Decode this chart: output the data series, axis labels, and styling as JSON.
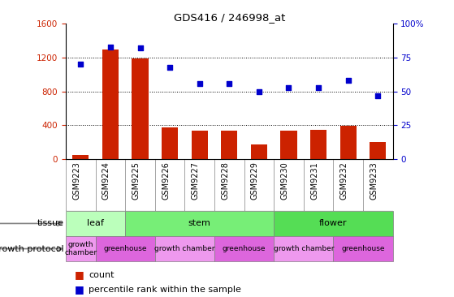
{
  "title": "GDS416 / 246998_at",
  "samples": [
    "GSM9223",
    "GSM9224",
    "GSM9225",
    "GSM9226",
    "GSM9227",
    "GSM9228",
    "GSM9229",
    "GSM9230",
    "GSM9231",
    "GSM9232",
    "GSM9233"
  ],
  "counts": [
    50,
    1300,
    1190,
    370,
    335,
    330,
    175,
    335,
    345,
    395,
    200
  ],
  "percentiles": [
    70,
    83,
    82,
    68,
    56,
    56,
    50,
    53,
    53,
    58,
    47
  ],
  "bar_color": "#cc2200",
  "dot_color": "#0000cc",
  "ylim_left": [
    0,
    1600
  ],
  "ylim_right": [
    0,
    100
  ],
  "yticks_left": [
    0,
    400,
    800,
    1200,
    1600
  ],
  "ytick_labels_left": [
    "0",
    "400",
    "800",
    "1200",
    "1600"
  ],
  "yticks_right": [
    0,
    25,
    50,
    75,
    100
  ],
  "ytick_labels_right": [
    "0",
    "25",
    "50",
    "75",
    "100%"
  ],
  "tissue_groups": [
    {
      "label": "leaf",
      "start": 0,
      "end": 2,
      "color": "#bbffbb"
    },
    {
      "label": "stem",
      "start": 2,
      "end": 7,
      "color": "#77ee77"
    },
    {
      "label": "flower",
      "start": 7,
      "end": 11,
      "color": "#55dd55"
    }
  ],
  "protocol_groups": [
    {
      "label": "growth\nchamber",
      "start": 0,
      "end": 1,
      "color": "#ee99ee"
    },
    {
      "label": "greenhouse",
      "start": 1,
      "end": 3,
      "color": "#dd66dd"
    },
    {
      "label": "growth chamber",
      "start": 3,
      "end": 5,
      "color": "#ee99ee"
    },
    {
      "label": "greenhouse",
      "start": 5,
      "end": 7,
      "color": "#dd66dd"
    },
    {
      "label": "growth chamber",
      "start": 7,
      "end": 9,
      "color": "#ee99ee"
    },
    {
      "label": "greenhouse",
      "start": 9,
      "end": 11,
      "color": "#dd66dd"
    }
  ],
  "tissue_label": "tissue",
  "protocol_label": "growth protocol",
  "background_color": "#ffffff",
  "ax_label_color_left": "#cc2200",
  "ax_label_color_right": "#0000cc",
  "grid_dotted_ticks": [
    400,
    800,
    1200
  ]
}
